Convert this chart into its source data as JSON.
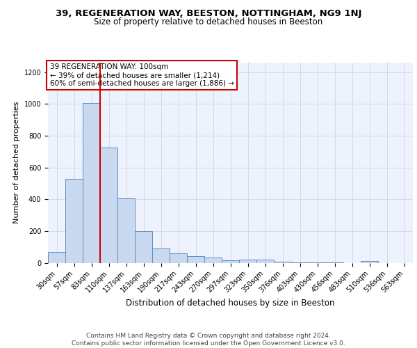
{
  "title1": "39, REGENERATION WAY, BEESTON, NOTTINGHAM, NG9 1NJ",
  "title2": "Size of property relative to detached houses in Beeston",
  "xlabel": "Distribution of detached houses by size in Beeston",
  "ylabel": "Number of detached properties",
  "categories": [
    "30sqm",
    "57sqm",
    "83sqm",
    "110sqm",
    "137sqm",
    "163sqm",
    "190sqm",
    "217sqm",
    "243sqm",
    "270sqm",
    "297sqm",
    "323sqm",
    "350sqm",
    "376sqm",
    "403sqm",
    "430sqm",
    "456sqm",
    "483sqm",
    "510sqm",
    "536sqm",
    "563sqm"
  ],
  "values": [
    68,
    530,
    1005,
    725,
    405,
    198,
    90,
    60,
    40,
    35,
    15,
    20,
    20,
    5,
    2,
    1,
    1,
    0,
    10,
    0,
    0
  ],
  "bar_color": "#c9d9f0",
  "bar_edge_color": "#5b8ec4",
  "grid_color": "#d0daea",
  "background_color": "#eef2fc",
  "red_line_x": 2.5,
  "annotation_text": "39 REGENERATION WAY: 100sqm\n← 39% of detached houses are smaller (1,214)\n60% of semi-detached houses are larger (1,886) →",
  "annotation_box_color": "#ffffff",
  "annotation_box_edge": "#cc0000",
  "ylim": [
    0,
    1260
  ],
  "yticks": [
    0,
    200,
    400,
    600,
    800,
    1000,
    1200
  ],
  "footer": "Contains HM Land Registry data © Crown copyright and database right 2024.\nContains public sector information licensed under the Open Government Licence v3.0.",
  "title1_fontsize": 9.5,
  "title2_fontsize": 8.5,
  "xlabel_fontsize": 8.5,
  "ylabel_fontsize": 8,
  "tick_fontsize": 7,
  "annotation_fontsize": 7.5,
  "footer_fontsize": 6.5
}
